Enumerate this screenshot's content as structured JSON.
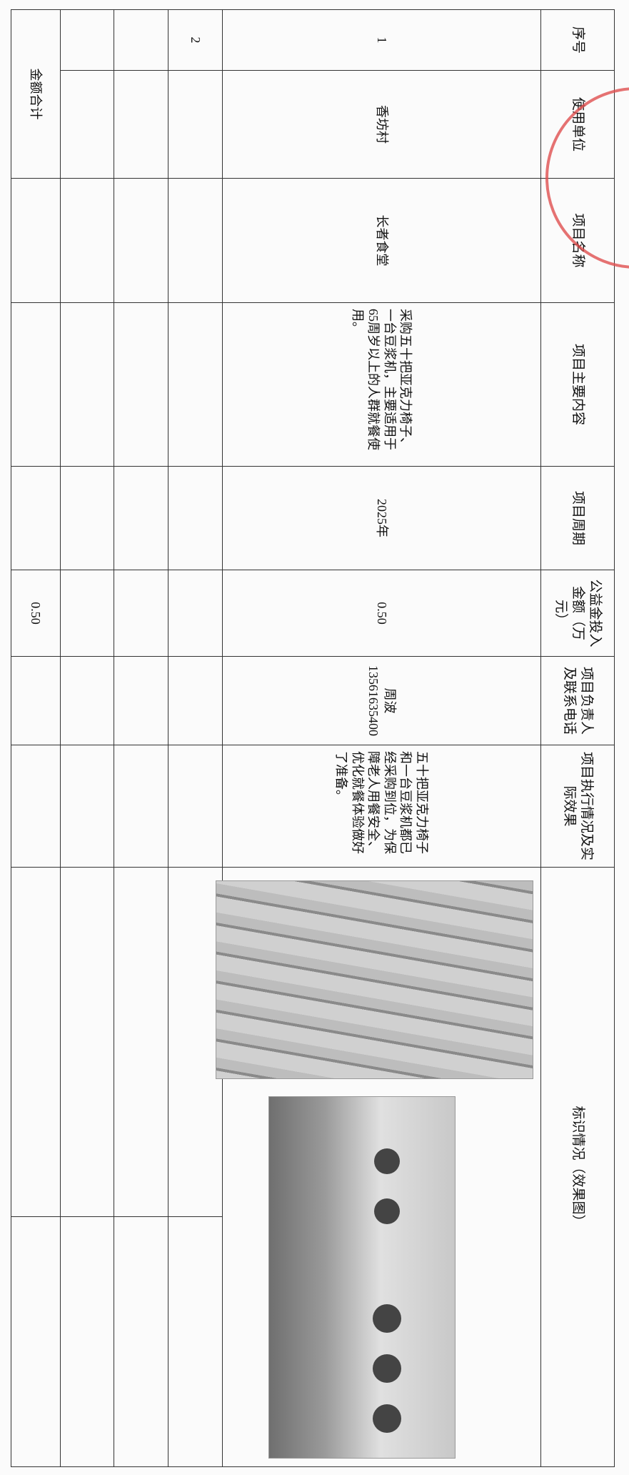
{
  "table": {
    "headers": [
      "序号",
      "使用单位",
      "项目名称",
      "项目主要内容",
      "项目周期",
      "公益金投入金额（万元）",
      "项目负责人及联系电话",
      "项目执行情况及实际效果",
      "标识情况（效果图）"
    ],
    "rows": [
      [
        "1",
        "香坊村",
        "长者食堂",
        "采购五十把亚克力椅子、一台豆浆机，主要适用于65周岁以上的人群就餐使用。",
        "2025年",
        "0.50",
        [
          "周波",
          "13561635400"
        ],
        "五十把亚克力椅子和一台豆浆机都已经采购到位，为保障老人用餐安全、优化就餐体验做好了准备。"
      ],
      [
        "2"
      ]
    ],
    "total": {
      "label": "金额合计",
      "amount": "0.50"
    }
  }
}
